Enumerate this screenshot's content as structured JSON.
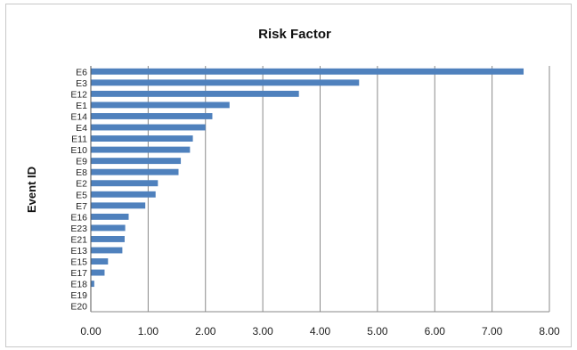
{
  "chart_data": {
    "type": "bar",
    "orientation": "horizontal",
    "title": "Risk Factor",
    "xlabel": "",
    "ylabel": "Event ID",
    "categories": [
      "E6",
      "E3",
      "E12",
      "E1",
      "E14",
      "E4",
      "E11",
      "E10",
      "E9",
      "E8",
      "E2",
      "E5",
      "E7",
      "E16",
      "E23",
      "E21",
      "E13",
      "E15",
      "E17",
      "E18",
      "E19",
      "E20"
    ],
    "values": [
      7.55,
      4.68,
      3.63,
      2.42,
      2.12,
      2.0,
      1.78,
      1.73,
      1.57,
      1.53,
      1.17,
      1.13,
      0.95,
      0.66,
      0.6,
      0.59,
      0.55,
      0.3,
      0.24,
      0.06,
      0.0,
      0.0
    ],
    "xlim": [
      0,
      8
    ],
    "xticks": [
      "0.00",
      "1.00",
      "2.00",
      "3.00",
      "4.00",
      "5.00",
      "6.00",
      "7.00",
      "8.00"
    ],
    "grid": "vertical",
    "legend": "none",
    "bar_color": "#4f81bd"
  }
}
